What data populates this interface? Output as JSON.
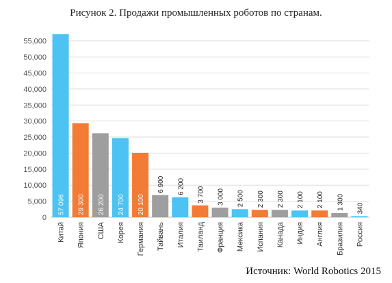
{
  "page": {
    "title": "Рисунок 2. Продажи промышленных роботов по странам.",
    "source": "Источник: World Robotics 2015"
  },
  "chart_data": {
    "type": "bar",
    "title": "",
    "xlabel": "",
    "ylabel": "",
    "ylim": [
      0,
      57500
    ],
    "grid": true,
    "y_ticks": [
      {
        "value": 0,
        "label": "0"
      },
      {
        "value": 5000,
        "label": "5,000"
      },
      {
        "value": 10000,
        "label": "10,000"
      },
      {
        "value": 15000,
        "label": "15,000"
      },
      {
        "value": 20000,
        "label": "20,000"
      },
      {
        "value": 25000,
        "label": "25,000"
      },
      {
        "value": 30000,
        "label": "30,000"
      },
      {
        "value": 35000,
        "label": "35,000"
      },
      {
        "value": 40000,
        "label": "40,000"
      },
      {
        "value": 45000,
        "label": "45,000"
      },
      {
        "value": 50000,
        "label": "50,000"
      },
      {
        "value": 55000,
        "label": "55,000"
      }
    ],
    "categories": [
      "Китай",
      "Япония",
      "США",
      "Корея",
      "Германия",
      "Тайвань",
      "Италия",
      "Таиланд",
      "Франция",
      "Мексика",
      "Испания",
      "Канада",
      "Индия",
      "Англия",
      "Бразилия",
      "Россия"
    ],
    "values": [
      57096,
      29300,
      26200,
      24700,
      20100,
      6900,
      6200,
      3700,
      3000,
      2500,
      2300,
      2300,
      2100,
      2100,
      1300,
      340
    ],
    "value_labels": [
      "57 096",
      "29 300",
      "26 200",
      "24 700",
      "20 100",
      "6 900",
      "6 200",
      "3 700",
      "3 000",
      "2 500",
      "2 300",
      "2 300",
      "2 100",
      "2 100",
      "1 300",
      "340"
    ],
    "colors": [
      "#4cc3f2",
      "#f27b35",
      "#9e9e9e",
      "#4cc3f2",
      "#f27b35",
      "#9e9e9e",
      "#4cc3f2",
      "#f27b35",
      "#9e9e9e",
      "#4cc3f2",
      "#f27b35",
      "#9e9e9e",
      "#4cc3f2",
      "#f27b35",
      "#9e9e9e",
      "#4cc3f2"
    ]
  }
}
